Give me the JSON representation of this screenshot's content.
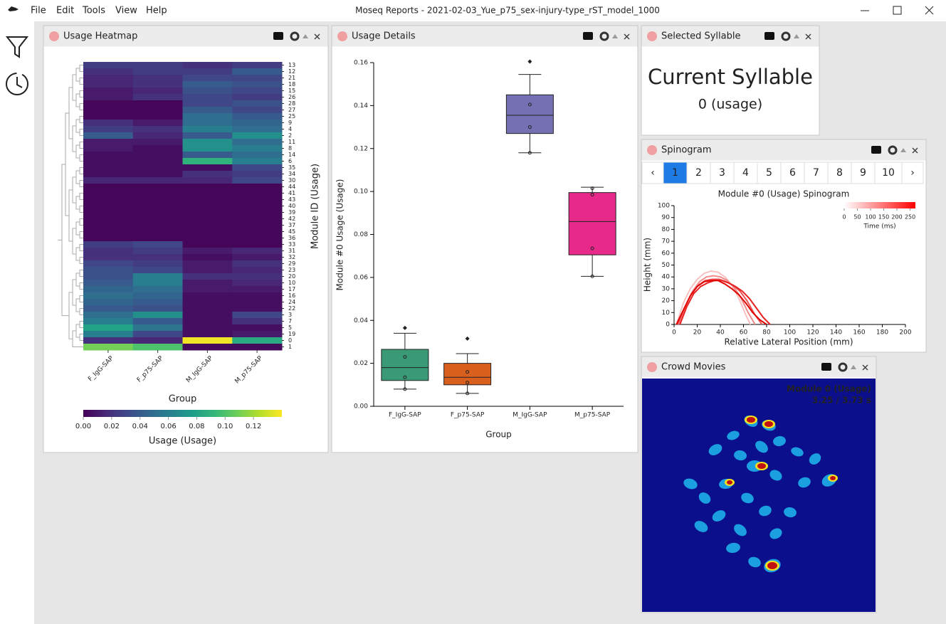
{
  "app": {
    "title": "Moseq Reports - 2021-02-03_Yue_p75_sex-injury-type_rST_model_1000",
    "menu": [
      "File",
      "Edit",
      "Tools",
      "View",
      "Help"
    ]
  },
  "panels": {
    "heatmap": "Usage Heatmap",
    "details": "Usage Details",
    "selected": "Selected Syllable",
    "spinogram": "Spinogram",
    "crowd": "Crowd Movies"
  },
  "selected": {
    "heading": "Current Syllable",
    "value": "0 (usage)"
  },
  "pagination": {
    "items": [
      "‹",
      "1",
      "2",
      "3",
      "4",
      "5",
      "6",
      "7",
      "8",
      "9",
      "10",
      "›"
    ],
    "selected": 1
  },
  "crowd": {
    "title": "Module 0 (Usage)",
    "time": "3.25 / 3.73 s"
  },
  "chart_data": [
    {
      "type": "heatmap",
      "x_label": "Group",
      "y_label": "Module ID (Usage)",
      "colormap": "viridis",
      "categories": [
        "F_IgG-SAP",
        "F_p75-SAP",
        "M_IgG-SAP",
        "M_p75-SAP"
      ],
      "rows": [
        "13",
        "12",
        "21",
        "18",
        "15",
        "26",
        "28",
        "27",
        "25",
        "9",
        "4",
        "2",
        "11",
        "8",
        "14",
        "6",
        "35",
        "34",
        "30",
        "44",
        "41",
        "43",
        "40",
        "39",
        "42",
        "37",
        "45",
        "36",
        "33",
        "31",
        "32",
        "29",
        "23",
        "20",
        "10",
        "17",
        "16",
        "24",
        "22",
        "3",
        "7",
        "5",
        "19",
        "0",
        "1"
      ],
      "values": [
        [
          0.025,
          0.025,
          0.02,
          0.025
        ],
        [
          0.02,
          0.025,
          0.025,
          0.04
        ],
        [
          0.015,
          0.02,
          0.03,
          0.03
        ],
        [
          0.015,
          0.02,
          0.04,
          0.035
        ],
        [
          0.01,
          0.015,
          0.035,
          0.03
        ],
        [
          0.01,
          0.02,
          0.03,
          0.025
        ],
        [
          0.002,
          0.002,
          0.03,
          0.035
        ],
        [
          0.002,
          0.002,
          0.04,
          0.03
        ],
        [
          0.002,
          0.002,
          0.05,
          0.04
        ],
        [
          0.02,
          0.01,
          0.05,
          0.045
        ],
        [
          0.025,
          0.02,
          0.06,
          0.05
        ],
        [
          0.04,
          0.015,
          0.04,
          0.07
        ],
        [
          0.01,
          0.01,
          0.07,
          0.05
        ],
        [
          0.01,
          0.005,
          0.07,
          0.06
        ],
        [
          0.005,
          0.005,
          0.04,
          0.05
        ],
        [
          0.005,
          0.005,
          0.09,
          0.06
        ],
        [
          0.005,
          0.005,
          0.005,
          0.03
        ],
        [
          0.005,
          0.005,
          0.02,
          0.025
        ],
        [
          0.015,
          0.015,
          0.015,
          0.03
        ],
        [
          0.002,
          0.002,
          0.002,
          0.002
        ],
        [
          0.002,
          0.002,
          0.002,
          0.002
        ],
        [
          0.002,
          0.002,
          0.002,
          0.002
        ],
        [
          0.002,
          0.002,
          0.002,
          0.002
        ],
        [
          0.002,
          0.002,
          0.002,
          0.002
        ],
        [
          0.002,
          0.002,
          0.002,
          0.002
        ],
        [
          0.002,
          0.002,
          0.002,
          0.002
        ],
        [
          0.002,
          0.002,
          0.002,
          0.002
        ],
        [
          0.002,
          0.002,
          0.002,
          0.002
        ],
        [
          0.025,
          0.03,
          0.002,
          0.002
        ],
        [
          0.02,
          0.025,
          0.01,
          0.015
        ],
        [
          0.02,
          0.02,
          0.005,
          0.01
        ],
        [
          0.03,
          0.025,
          0.01,
          0.02
        ],
        [
          0.035,
          0.03,
          0.01,
          0.015
        ],
        [
          0.035,
          0.06,
          0.02,
          0.02
        ],
        [
          0.04,
          0.06,
          0.01,
          0.015
        ],
        [
          0.045,
          0.05,
          0.01,
          0.01
        ],
        [
          0.05,
          0.045,
          0.005,
          0.005
        ],
        [
          0.045,
          0.04,
          0.005,
          0.005
        ],
        [
          0.04,
          0.035,
          0.005,
          0.005
        ],
        [
          0.05,
          0.07,
          0.005,
          0.03
        ],
        [
          0.06,
          0.04,
          0.005,
          0.02
        ],
        [
          0.08,
          0.055,
          0.005,
          0.005
        ],
        [
          0.06,
          0.03,
          0.005,
          0.01
        ],
        [
          0.02,
          0.015,
          0.137,
          0.085
        ],
        [
          0.11,
          0.1,
          0.003,
          0.003
        ]
      ],
      "colorbar": {
        "label": "Usage (Usage)",
        "lim": [
          0,
          0.14
        ],
        "ticks": [
          {
            "value": 0,
            "label": "0.00"
          },
          0.02,
          0.04,
          0.06,
          0.08,
          {
            "value": 0.1,
            "label": "0.10"
          },
          0.12
        ]
      }
    },
    {
      "type": "box",
      "x_label": "Group",
      "y_label": "Module #0 Usage (Usage)",
      "categories": [
        "F_IgG-SAP",
        "F_p75-SAP",
        "M_IgG-SAP",
        "M_p75-SAP"
      ],
      "ylim": [
        0,
        0.16
      ],
      "yticks": [
        {
          "value": 0,
          "label": "0.00"
        },
        0.02,
        0.04,
        0.06,
        0.08,
        {
          "value": 0.1,
          "label": "0.10"
        },
        0.12,
        0.14,
        0.16
      ],
      "boxes": [
        {
          "color": "#3a9a76",
          "low": 0.008,
          "q1": 0.012,
          "median": 0.018,
          "q3": 0.0265,
          "high": 0.034,
          "outliers": [
            0.0365
          ],
          "points": [
            0.008,
            0.0135,
            0.023
          ]
        },
        {
          "color": "#d95f1e",
          "low": 0.006,
          "q1": 0.01,
          "median": 0.0135,
          "q3": 0.02,
          "high": 0.0245,
          "outliers": [
            0.0315
          ],
          "points": [
            0.006,
            0.011,
            0.016
          ]
        },
        {
          "color": "#7570b3",
          "low": 0.118,
          "q1": 0.127,
          "median": 0.1355,
          "q3": 0.145,
          "high": 0.1545,
          "outliers": [
            0.1605
          ],
          "points": [
            0.118,
            0.13,
            0.1405
          ]
        },
        {
          "color": "#e7298a",
          "low": 0.0605,
          "q1": 0.0705,
          "median": 0.086,
          "q3": 0.0995,
          "high": 0.102,
          "outliers": [],
          "points": [
            0.0605,
            0.0735,
            0.0985,
            0.1015
          ]
        }
      ]
    },
    {
      "type": "line",
      "title": "Module #0 (Usage) Spinogram",
      "x_label": "Relative Lateral Position (mm)",
      "y_label": "Height (mm)",
      "xlim": [
        0,
        200
      ],
      "xticks": [
        0,
        20,
        40,
        60,
        80,
        100,
        120,
        140,
        160,
        180,
        200
      ],
      "ylim": [
        0,
        100
      ],
      "yticks": [
        0,
        10,
        20,
        30,
        40,
        50,
        60,
        70,
        80,
        90,
        100
      ],
      "series": [
        {
          "color": "#f9c0c0",
          "x": [
            2,
            8,
            14,
            20,
            26,
            32,
            38,
            44,
            50,
            56,
            62,
            66
          ],
          "y": [
            0,
            18,
            30,
            38,
            43,
            45,
            44,
            40,
            33,
            22,
            8,
            0
          ]
        },
        {
          "color": "#f28a8a",
          "x": [
            4,
            10,
            16,
            22,
            28,
            34,
            40,
            46,
            52,
            58,
            64,
            70
          ],
          "y": [
            0,
            16,
            28,
            36,
            40,
            41,
            40,
            37,
            31,
            22,
            10,
            0
          ]
        },
        {
          "color": "#ee5555",
          "x": [
            3,
            9,
            15,
            21,
            27,
            33,
            39,
            45,
            51,
            57,
            63,
            70,
            76
          ],
          "y": [
            0,
            14,
            26,
            33,
            37,
            38,
            38,
            36,
            33,
            28,
            20,
            8,
            0
          ]
        },
        {
          "color": "#e82020",
          "x": [
            5,
            11,
            17,
            23,
            29,
            35,
            41,
            47,
            53,
            59,
            65,
            71,
            77,
            83
          ],
          "y": [
            0,
            15,
            26,
            32,
            35,
            37,
            37,
            35,
            32,
            28,
            22,
            14,
            6,
            0
          ]
        },
        {
          "color": "#e00000",
          "x": [
            2,
            8,
            14,
            20,
            26,
            32,
            38,
            44,
            50,
            56,
            62,
            68,
            74,
            80
          ],
          "y": [
            0,
            12,
            24,
            32,
            36,
            37,
            37,
            34,
            30,
            25,
            18,
            10,
            4,
            0
          ]
        }
      ],
      "colorbar": {
        "label": "Time (ms)",
        "lim": [
          0,
          270
        ],
        "colors": [
          "#ffffff",
          "#ff0000"
        ],
        "ticks": [
          0,
          50,
          100,
          150,
          200,
          250
        ]
      }
    }
  ]
}
